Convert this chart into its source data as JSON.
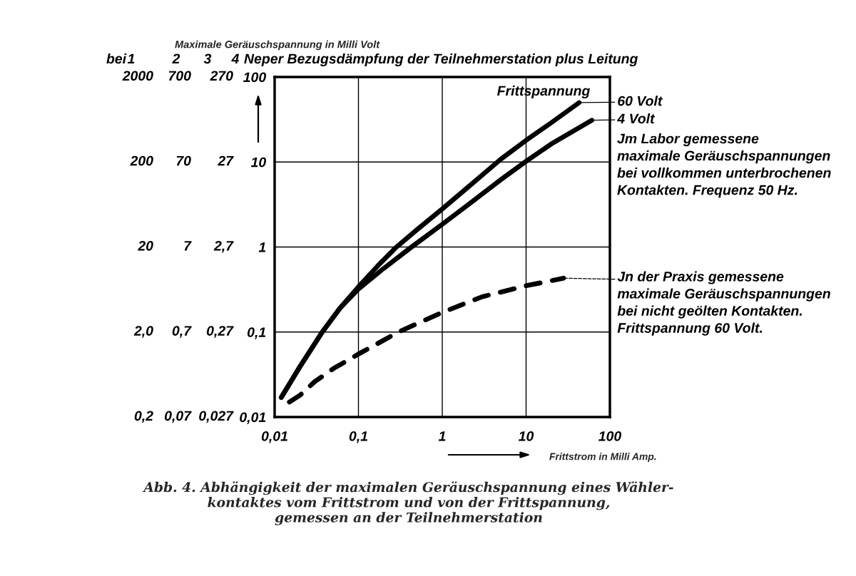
{
  "chart_data": {
    "type": "line",
    "title": "Abb. 4. Abhängigkeit der maximalen Geräuschspannung eines Wähler-\nkontaktes vom Frittstrom und von der Frittspannung,\ngemessen an der Teilnehmerstation",
    "xlabel": "Frittstrom in Milli Amp.",
    "ylabel": "Maximale Geräuschspannung in Milli Volt",
    "legend_title": "Frittspannung",
    "annotations": [
      "bei",
      "1",
      "2",
      "3",
      "4",
      "Neper Bezugsdämpfung der Teilnehmerstation plus Leitung",
      "2000",
      "700",
      "270",
      "200",
      "70",
      "27",
      "20",
      "7",
      "2,7",
      "2,0",
      "0,7",
      "0,27",
      "0,2",
      "0,07",
      "0,027",
      "Jm Labor gemessene\nmaximale Geräuschspannungen\nbei vollkommen unterbrochenen\nKontakten. Frequenz 50 Hz."
    ],
    "series": [
      {
        "name": "60 Volt",
        "color": "#000000",
        "line_style": "solid",
        "x": [
          0.012,
          0.02,
          0.037,
          0.06,
          0.1,
          0.17,
          0.275,
          0.5,
          1,
          2,
          5,
          10,
          20,
          43
        ],
        "values": [
          0.017,
          0.039,
          0.1,
          0.19,
          0.34,
          0.6,
          0.97,
          1.6,
          2.8,
          5.0,
          10.8,
          18,
          29,
          50
        ]
      },
      {
        "name": "4 Volt",
        "color": "#000000",
        "line_style": "solid",
        "x": [
          0.012,
          0.02,
          0.037,
          0.06,
          0.1,
          0.2,
          0.43,
          1,
          2,
          5,
          10,
          20,
          61
        ],
        "values": [
          0.017,
          0.039,
          0.1,
          0.19,
          0.32,
          0.56,
          1.0,
          1.85,
          3.1,
          6.2,
          10.2,
          16.3,
          31
        ]
      },
      {
        "name": "Jn der Praxis gemessene\nmaximale Geräuschspannungen\nbei nicht geölten Kontakten.\nFrittspannung 60 Volt.",
        "color": "#000000",
        "line_style": "dashed",
        "x": [
          0.015,
          0.02,
          0.03,
          0.05,
          0.1,
          0.3,
          1,
          3,
          10,
          28
        ],
        "values": [
          0.015,
          0.018,
          0.026,
          0.037,
          0.055,
          0.1,
          0.17,
          0.26,
          0.35,
          0.43
        ]
      }
    ],
    "xlim": [
      0.01,
      100
    ],
    "xticks": [
      {
        "value": 0.01,
        "label": "0,01"
      },
      {
        "value": 0.1,
        "label": "0,1"
      },
      1,
      10,
      100
    ],
    "ylim": [
      0.01,
      100
    ],
    "yticks": [
      {
        "value": 0.01,
        "label": "0,01"
      },
      {
        "value": 0.1,
        "label": "0,1"
      },
      1,
      10,
      100
    ],
    "log": "xy",
    "grid": true,
    "legend": "right"
  }
}
